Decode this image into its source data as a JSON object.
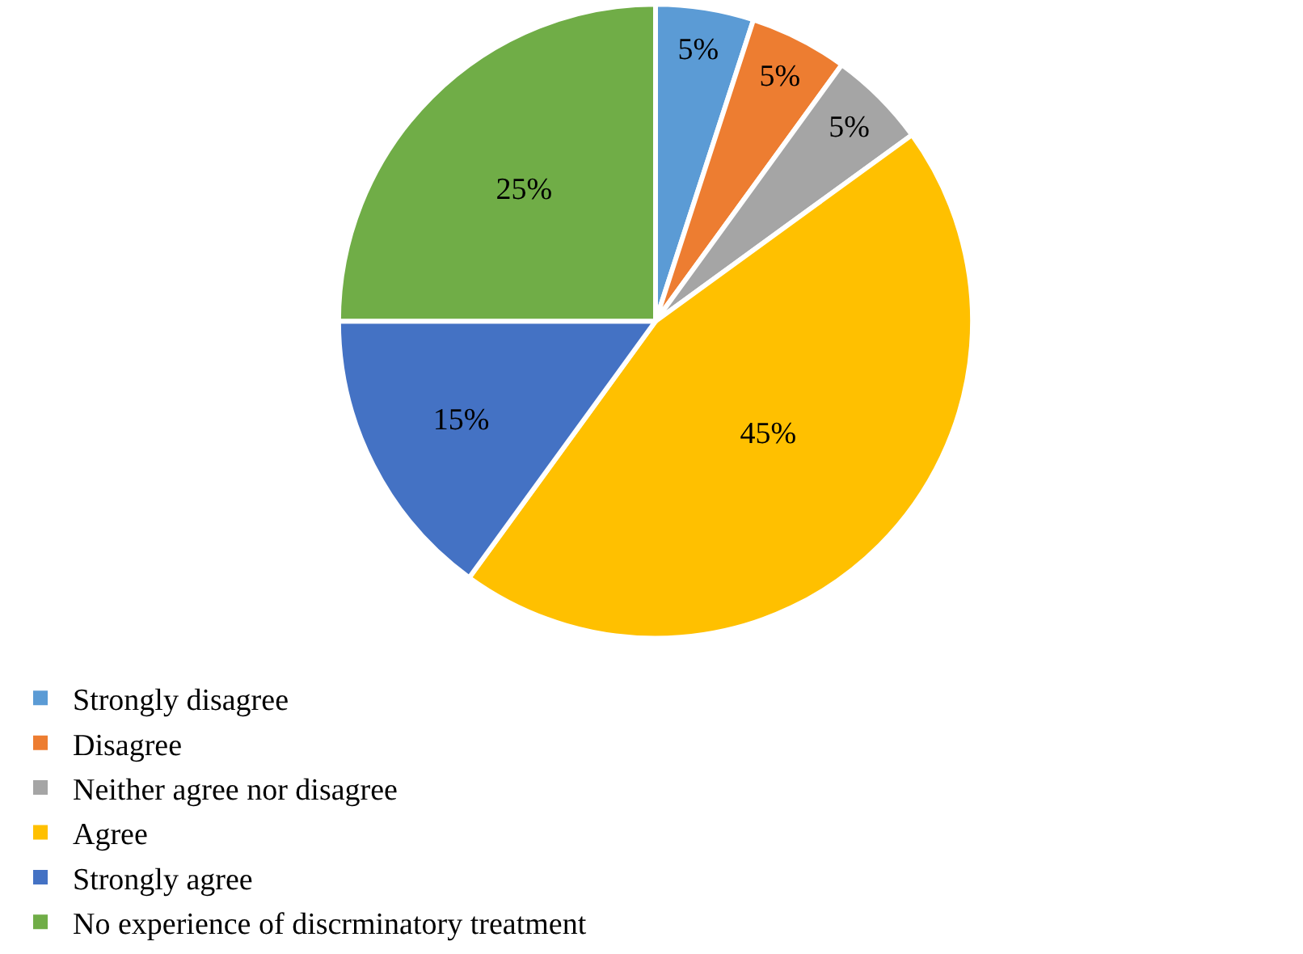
{
  "chart_data": {
    "type": "pie",
    "categories": [
      "Strongly disagree",
      "Disagree",
      "Neither agree nor disagree",
      "Agree",
      "Strongly agree",
      "No experience of discrminatory treatment"
    ],
    "values": [
      5,
      5,
      5,
      45,
      15,
      25
    ],
    "value_labels": [
      "5%",
      "5%",
      "5%",
      "45%",
      "15%",
      "25%"
    ],
    "colors": [
      "#5b9bd5",
      "#ed7d31",
      "#a5a5a5",
      "#ffc000",
      "#4472c4",
      "#70ad47"
    ],
    "legend": "bottom"
  }
}
